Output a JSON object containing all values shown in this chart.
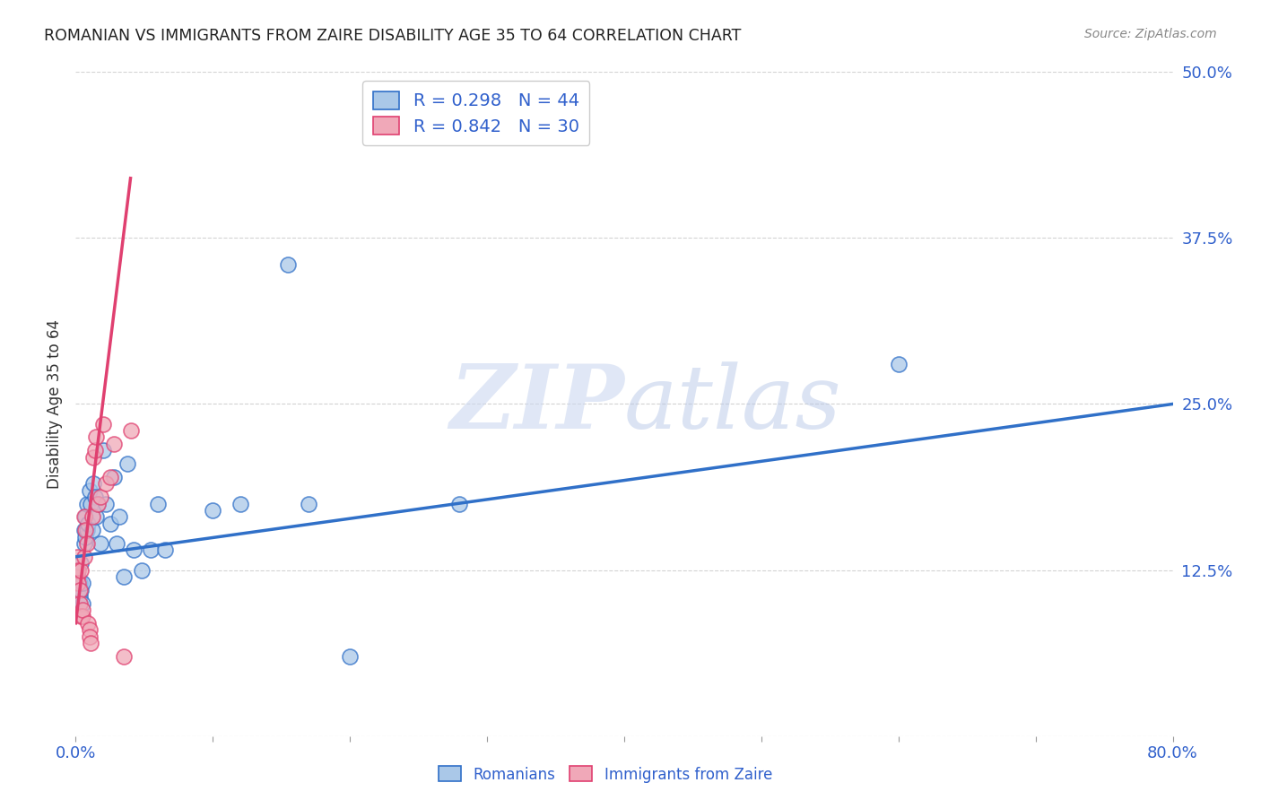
{
  "title": "ROMANIAN VS IMMIGRANTS FROM ZAIRE DISABILITY AGE 35 TO 64 CORRELATION CHART",
  "source": "Source: ZipAtlas.com",
  "ylabel": "Disability Age 35 to 64",
  "xlim": [
    0.0,
    0.8
  ],
  "ylim": [
    0.0,
    0.5
  ],
  "yticks": [
    0.0,
    0.125,
    0.25,
    0.375,
    0.5
  ],
  "ytick_labels": [
    "",
    "12.5%",
    "25.0%",
    "37.5%",
    "50.0%"
  ],
  "grid_color": "#c8c8c8",
  "background_color": "#ffffff",
  "romanian_R": 0.298,
  "romanian_N": 44,
  "zaire_R": 0.842,
  "zaire_N": 30,
  "romanian_color": "#aac8e8",
  "romanian_line_color": "#3070c8",
  "zaire_color": "#f0a8b8",
  "zaire_line_color": "#e04070",
  "legend_text_color": "#3060cc",
  "watermark_color": "#ccd8f0",
  "romanians_x": [
    0.001,
    0.002,
    0.002,
    0.003,
    0.003,
    0.004,
    0.004,
    0.005,
    0.005,
    0.006,
    0.006,
    0.007,
    0.007,
    0.008,
    0.008,
    0.009,
    0.01,
    0.011,
    0.012,
    0.013,
    0.014,
    0.015,
    0.016,
    0.018,
    0.02,
    0.022,
    0.025,
    0.028,
    0.03,
    0.032,
    0.035,
    0.038,
    0.042,
    0.048,
    0.055,
    0.06,
    0.065,
    0.1,
    0.12,
    0.155,
    0.17,
    0.2,
    0.28,
    0.6
  ],
  "romanians_y": [
    0.115,
    0.11,
    0.12,
    0.105,
    0.115,
    0.13,
    0.11,
    0.115,
    0.1,
    0.145,
    0.155,
    0.165,
    0.15,
    0.175,
    0.155,
    0.16,
    0.185,
    0.175,
    0.155,
    0.19,
    0.18,
    0.165,
    0.175,
    0.145,
    0.215,
    0.175,
    0.16,
    0.195,
    0.145,
    0.165,
    0.12,
    0.205,
    0.14,
    0.125,
    0.14,
    0.175,
    0.14,
    0.17,
    0.175,
    0.355,
    0.175,
    0.06,
    0.175,
    0.28
  ],
  "zaire_x": [
    0.001,
    0.001,
    0.002,
    0.002,
    0.003,
    0.003,
    0.004,
    0.004,
    0.005,
    0.005,
    0.006,
    0.006,
    0.007,
    0.008,
    0.009,
    0.01,
    0.01,
    0.011,
    0.012,
    0.013,
    0.014,
    0.015,
    0.016,
    0.018,
    0.02,
    0.022,
    0.025,
    0.028,
    0.035,
    0.04
  ],
  "zaire_y": [
    0.135,
    0.12,
    0.125,
    0.115,
    0.11,
    0.1,
    0.125,
    0.09,
    0.09,
    0.095,
    0.135,
    0.165,
    0.155,
    0.145,
    0.085,
    0.08,
    0.075,
    0.07,
    0.165,
    0.21,
    0.215,
    0.225,
    0.175,
    0.18,
    0.235,
    0.19,
    0.195,
    0.22,
    0.06,
    0.23
  ],
  "rom_line_x": [
    0.0,
    0.8
  ],
  "rom_line_y": [
    0.135,
    0.25
  ],
  "zaire_line_x": [
    0.0,
    0.04
  ],
  "zaire_line_y": [
    0.085,
    0.42
  ]
}
